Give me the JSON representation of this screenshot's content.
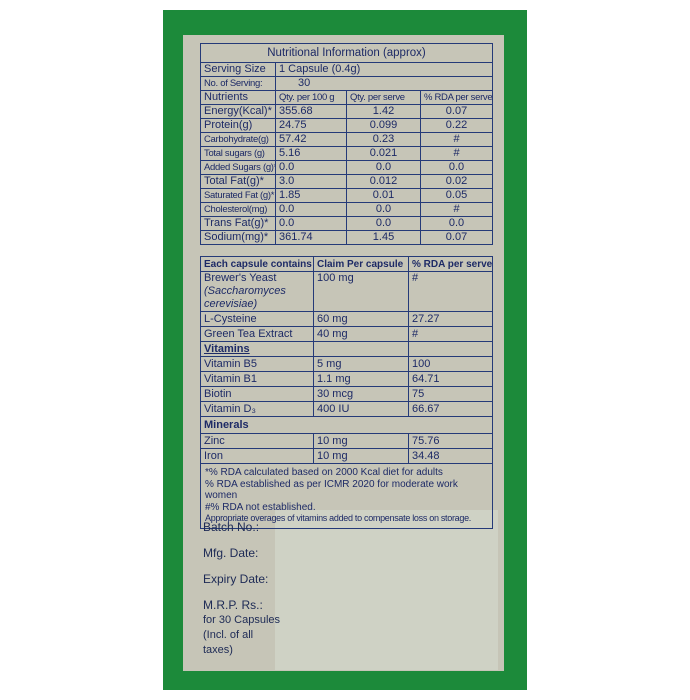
{
  "colors": {
    "border_green": "#1c8a3a",
    "label_bg": "#c6c5b7",
    "text_navy": "#1d2a66"
  },
  "nutrition": {
    "title": "Nutritional Information (approx)",
    "serving_size_label": "Serving Size",
    "serving_size": "1 Capsule (0.4g)",
    "servings_label": "No. of Serving:",
    "servings": "30",
    "headers": [
      "Nutrients",
      "Qty. per 100 g",
      "Qty. per serve",
      "% RDA per serve"
    ],
    "rows": [
      [
        "Energy(Kcal)*",
        "355.68",
        "1.42",
        "0.07"
      ],
      [
        "Protein(g)",
        "24.75",
        "0.099",
        "0.22"
      ],
      [
        "Carbohydrate(g)",
        "57.42",
        "0.23",
        "#"
      ],
      [
        "Total sugars (g)",
        "5.16",
        "0.021",
        "#"
      ],
      [
        "Added Sugars (g)*",
        "0.0",
        "0.0",
        "0.0"
      ],
      [
        "Total Fat(g)*",
        "3.0",
        "0.012",
        "0.02"
      ],
      [
        "Saturated Fat (g)*",
        "1.85",
        "0.01",
        "0.05"
      ],
      [
        "Cholesterol(mg)",
        "0.0",
        "0.0",
        "#"
      ],
      [
        "Trans Fat(g)*",
        "0.0",
        "0.0",
        "0.0"
      ],
      [
        "Sodium(mg)*",
        "361.74",
        "1.45",
        "0.07"
      ]
    ]
  },
  "capsule": {
    "headers": [
      "Each capsule contains",
      "Claim Per capsule",
      "% RDA per serve"
    ],
    "brewers": {
      "name": "Brewer's Yeast",
      "latin": "(Saccharomyces cerevisiae)",
      "claim": "100 mg",
      "rda": "#"
    },
    "rows": [
      [
        "L-Cysteine",
        "60 mg",
        "27.27"
      ],
      [
        "Green Tea Extract",
        "40 mg",
        "#"
      ]
    ],
    "vitamins_label": "Vitamins",
    "vitamins": [
      [
        "Vitamin B5",
        "5 mg",
        "100"
      ],
      [
        "Vitamin B1",
        "1.1 mg",
        "64.71"
      ],
      [
        "Biotin",
        "30 mcg",
        "75"
      ],
      [
        "Vitamin D₃",
        "400 IU",
        "66.67"
      ]
    ],
    "minerals_label": "Minerals",
    "minerals": [
      [
        "Zinc",
        "10 mg",
        "75.76"
      ],
      [
        "Iron",
        "10 mg",
        "34.48"
      ]
    ],
    "footnotes": [
      "*% RDA calculated based on 2000 Kcal diet for adults",
      "% RDA established as per ICMR 2020 for moderate work women",
      "#% RDA not established.",
      "Appropriate overages of vitamins added to compensate loss on storage."
    ]
  },
  "batch": {
    "batch": "Batch No.:",
    "mfg": "Mfg. Date:",
    "expiry": "Expiry Date:",
    "mrp": [
      "M.R.P. Rs.:",
      "for 30 Capsules",
      "(Incl. of all",
      "taxes)"
    ]
  }
}
